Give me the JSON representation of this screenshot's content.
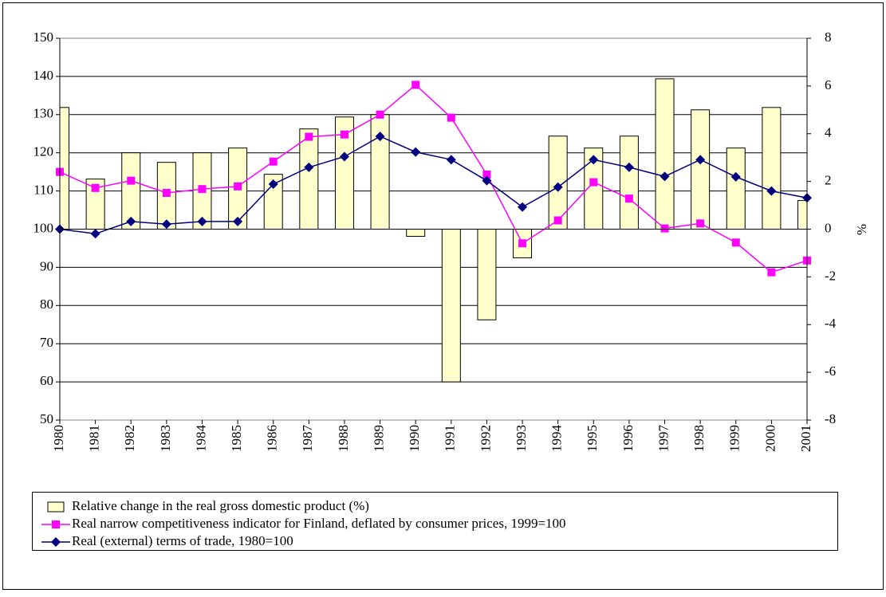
{
  "chart_data": {
    "type": "combo",
    "categories": [
      "1980",
      "1981",
      "1982",
      "1983",
      "1984",
      "1985",
      "1986",
      "1987",
      "1988",
      "1989",
      "1990",
      "1991",
      "1992",
      "1993",
      "1994",
      "1995",
      "1996",
      "1997",
      "1998",
      "1999",
      "2000",
      "2001"
    ],
    "y2_label": "%",
    "ylim": [
      50,
      150
    ],
    "yticks": [
      50,
      60,
      70,
      80,
      90,
      100,
      110,
      120,
      130,
      140,
      150
    ],
    "y2lim": [
      -8,
      8
    ],
    "y2ticks": [
      -8,
      -6,
      -4,
      -2,
      0,
      2,
      4,
      6,
      8
    ],
    "grid": true,
    "series": [
      {
        "name": "Relative change in the real gross domestic product (%)",
        "type": "bar",
        "axis": "y2",
        "color": "#ffffcc",
        "values": [
          5.1,
          2.1,
          3.2,
          2.8,
          3.2,
          3.4,
          2.3,
          4.2,
          4.7,
          4.8,
          -0.3,
          -6.4,
          -3.8,
          -1.2,
          3.9,
          3.4,
          3.9,
          6.3,
          5.0,
          3.4,
          5.1,
          1.2
        ]
      },
      {
        "name": "Real narrow competitiveness indicator for Finland, deflated by consumer prices, 1999=100",
        "type": "line",
        "marker": "square",
        "color": "#ff00ff",
        "values": [
          115,
          110.8,
          112.7,
          109.5,
          110.5,
          111.2,
          117.7,
          124.2,
          124.8,
          130,
          137.8,
          129.2,
          114.3,
          96.3,
          102.3,
          112.3,
          108,
          100.2,
          101.5,
          96.5,
          88.7,
          91.8
        ]
      },
      {
        "name": "Real (external) terms of trade, 1980=100",
        "type": "line",
        "marker": "diamond",
        "color": "#000080",
        "values": [
          100,
          98.8,
          102,
          101.3,
          102,
          102,
          111.8,
          116.2,
          119,
          124.3,
          120.2,
          118.2,
          112.7,
          105.8,
          111,
          118.2,
          116.2,
          113.8,
          118.2,
          113.7,
          110,
          108.2
        ]
      }
    ]
  }
}
